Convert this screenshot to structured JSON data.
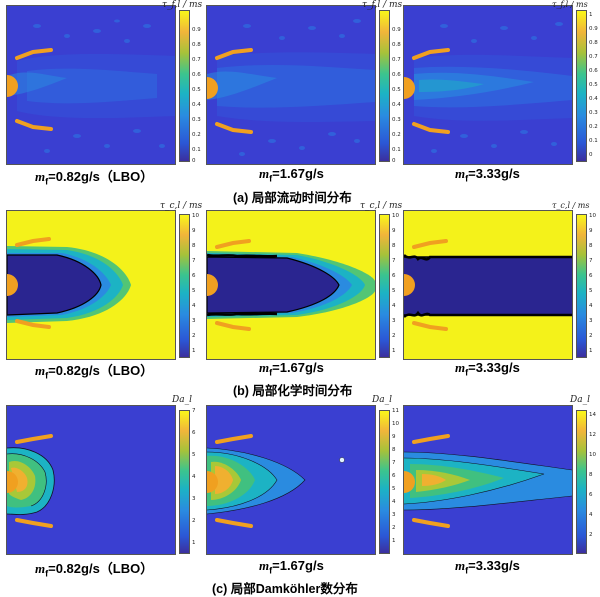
{
  "rows": [
    {
      "id": "flow",
      "caption": "(a) 局部流动时间分布",
      "cbar_title": "τ_f,l / ms",
      "panels": [
        {
          "label_pre": "m",
          "label_sub": "f",
          "label_post": "=0.82g/s（LBO）",
          "ticks": [
            "0.9",
            "0.8",
            "0.7",
            "0.6",
            "0.5",
            "0.4",
            "0.3",
            "0.2",
            "0.1",
            "0"
          ]
        },
        {
          "label_pre": "m",
          "label_sub": "f",
          "label_post": "=1.67g/s",
          "ticks": [
            "0.9",
            "0.8",
            "0.7",
            "0.6",
            "0.5",
            "0.4",
            "0.3",
            "0.2",
            "0.1",
            "0"
          ]
        },
        {
          "label_pre": "m",
          "label_sub": "f",
          "label_post": "=3.33g/s",
          "ticks": [
            "1",
            "0.9",
            "0.8",
            "0.7",
            "0.6",
            "0.5",
            "0.4",
            "0.3",
            "0.2",
            "0.1",
            "0"
          ]
        }
      ]
    },
    {
      "id": "chem",
      "caption": "(b) 局部化学时间分布",
      "cbar_title": "τ_c,l / ms",
      "panels": [
        {
          "label_pre": "m",
          "label_sub": "f",
          "label_post": "=0.82g/s（LBO）",
          "ticks": [
            "10",
            "9",
            "8",
            "7",
            "6",
            "5",
            "4",
            "3",
            "2",
            "1"
          ]
        },
        {
          "label_pre": "m",
          "label_sub": "f",
          "label_post": "=1.67g/s",
          "ticks": [
            "10",
            "9",
            "8",
            "7",
            "6",
            "5",
            "4",
            "3",
            "2",
            "1"
          ]
        },
        {
          "label_pre": "m",
          "label_sub": "f",
          "label_post": "=3.33g/s",
          "ticks": [
            "10",
            "9",
            "8",
            "7",
            "6",
            "5",
            "4",
            "3",
            "2",
            "1"
          ]
        }
      ]
    },
    {
      "id": "da",
      "caption": "(c) 局部Damköhler数分布",
      "cbar_title": "Da_l",
      "panels": [
        {
          "label_pre": "m",
          "label_sub": "f",
          "label_post": "=0.82g/s（LBO）",
          "ticks": [
            "7",
            "6",
            "5",
            "4",
            "3",
            "2",
            "1"
          ]
        },
        {
          "label_pre": "m",
          "label_sub": "f",
          "label_post": "=1.67g/s",
          "ticks": [
            "11",
            "10",
            "9",
            "8",
            "7",
            "6",
            "5",
            "4",
            "3",
            "2",
            "1"
          ]
        },
        {
          "label_pre": "m",
          "label_sub": "f",
          "label_post": "=3.33g/s",
          "ticks": [
            "14",
            "12",
            "10",
            "8",
            "6",
            "4",
            "2"
          ]
        }
      ]
    }
  ],
  "colors": {
    "deep_blue": "#3a3fd1",
    "navy": "#2a2590",
    "yellow": "#f4f21a",
    "orange": "#f0a020",
    "cyan": "#22b0d0",
    "green": "#40c080",
    "lime": "#a8c838"
  }
}
